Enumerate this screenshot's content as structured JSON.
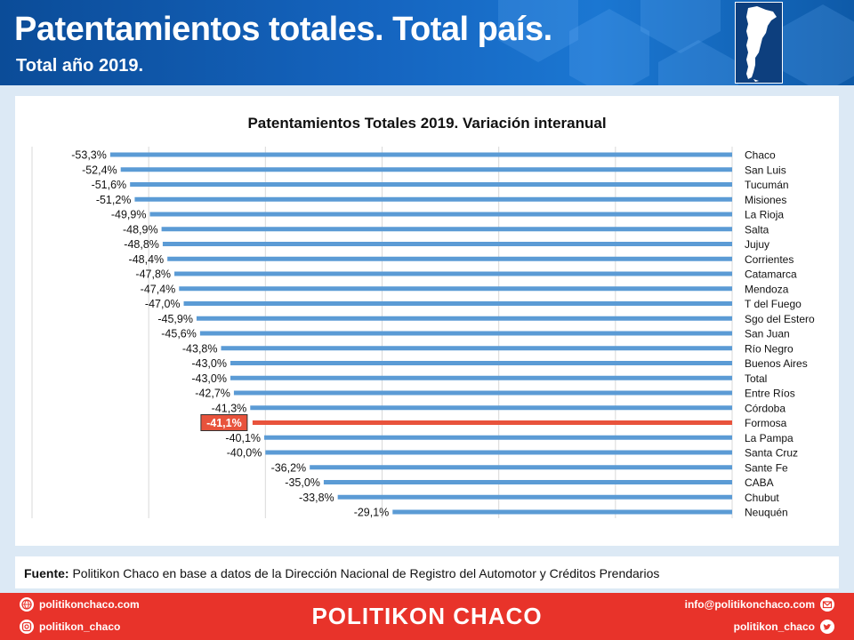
{
  "header": {
    "title": "Patentamientos totales. Total país.",
    "subtitle": "Total año 2019."
  },
  "chart_data": {
    "type": "bar",
    "orientation": "horizontal",
    "title": "Patentamientos Totales 2019. Variación interanual",
    "xlabel": "",
    "ylabel": "",
    "xlim": [
      -60,
      0
    ],
    "grid": true,
    "value_format": "percent",
    "categories": [
      "Chaco",
      "San Luis",
      "Tucumán",
      "Misiones",
      "La Rioja",
      "Salta",
      "Jujuy",
      "Corrientes",
      "Catamarca",
      "Mendoza",
      "T del Fuego",
      "Sgo del Estero",
      "San Juan",
      "Río Negro",
      "Buenos Aires",
      "Total",
      "Entre Ríos",
      "Córdoba",
      "Formosa",
      "La Pampa",
      "Santa Cruz",
      "Sante Fe",
      "CABA",
      "Chubut",
      "Neuquén"
    ],
    "values": [
      -53.3,
      -52.4,
      -51.6,
      -51.2,
      -49.9,
      -48.9,
      -48.8,
      -48.4,
      -47.8,
      -47.4,
      -47.0,
      -45.9,
      -45.6,
      -43.8,
      -43.0,
      -43.0,
      -42.7,
      -41.3,
      -41.1,
      -40.1,
      -40.0,
      -36.2,
      -35.0,
      -33.8,
      -29.1
    ],
    "value_labels": [
      "-53,3%",
      "-52,4%",
      "-51,6%",
      "-51,2%",
      "-49,9%",
      "-48,9%",
      "-48,8%",
      "-48,4%",
      "-47,8%",
      "-47,4%",
      "-47,0%",
      "-45,9%",
      "-45,6%",
      "-43,8%",
      "-43,0%",
      "-43,0%",
      "-42,7%",
      "-41,3%",
      "-41,1%",
      "-40,1%",
      "-40,0%",
      "-36,2%",
      "-35,0%",
      "-33,8%",
      "-29,1%"
    ],
    "highlight": "Formosa",
    "colors": {
      "bar": "#5b9bd5",
      "highlight": "#e8533c",
      "grid": "#d9d9d9"
    }
  },
  "source": {
    "label": "Fuente:",
    "text": " Politikon Chaco en base a datos de la Dirección Nacional de Registro del Automotor y Créditos Prendarios"
  },
  "footer": {
    "website": "politikonchaco.com",
    "instagram": "politikon_chaco",
    "brand": "POLITIKON CHACO",
    "email": "info@politikonchaco.com",
    "twitter": "politikon_chaco",
    "icons": [
      "globe-icon",
      "instagram-icon",
      "mail-icon",
      "twitter-icon"
    ]
  },
  "colors": {
    "header": "#1565c0",
    "footer": "#e8332a",
    "background": "#dce9f5"
  }
}
